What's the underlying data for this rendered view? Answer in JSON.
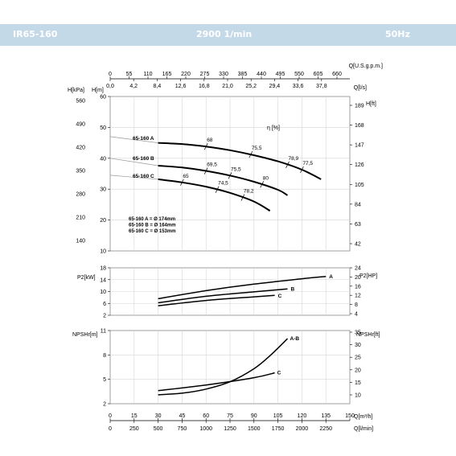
{
  "header": {
    "model": "IR65-160",
    "speed": "2900 1/min",
    "frequency": "50Hz",
    "color": "#c4d9e8"
  },
  "chart_data": [
    {
      "type": "line",
      "name": "head",
      "xlabel": "Q[m³/h]",
      "ylabel": "H[m]",
      "xlim": [
        0,
        150
      ],
      "ylim": [
        10,
        60
      ],
      "y_ticks": [
        10,
        20,
        30,
        40,
        50,
        60
      ],
      "y_ticks_kpa": [
        "140",
        "210",
        "280",
        "350",
        "420",
        "490",
        "560"
      ],
      "y_ticks_ft": [
        "42",
        "63",
        "84",
        "105",
        "126",
        "147",
        "168",
        "189"
      ],
      "top_axis_usgpm": {
        "label": "Q[U.S.g.p.m.]",
        "ticks": [
          "0",
          "55",
          "110",
          "165",
          "220",
          "275",
          "330",
          "385",
          "440",
          "495",
          "550",
          "605",
          "660"
        ]
      },
      "top_axis_ls": {
        "label": "Q[l/s]",
        "ticks": [
          "0,0",
          "4,2",
          "8,4",
          "12,6",
          "16,8",
          "21,0",
          "25,2",
          "29,4",
          "33,6",
          "37,8"
        ]
      },
      "left_outer_label": "H[kPa]",
      "right_label": "H[ft]",
      "eta_label": "η [%]",
      "series": [
        {
          "name": "65-160 A",
          "x": [
            0,
            30,
            45,
            60,
            75,
            90,
            105,
            120,
            132
          ],
          "y": [
            47,
            45,
            44.6,
            43.8,
            42.6,
            41,
            39,
            36.3,
            33.2
          ]
        },
        {
          "name": "65-160 B",
          "x": [
            0,
            30,
            45,
            60,
            75,
            90,
            105,
            111
          ],
          "y": [
            40,
            37.6,
            37,
            35.9,
            34.4,
            32.4,
            29.8,
            28
          ]
        },
        {
          "name": "65-160 C",
          "x": [
            0,
            30,
            45,
            60,
            75,
            90,
            100
          ],
          "y": [
            34.5,
            33.2,
            32.2,
            30.8,
            28.8,
            26,
            23
          ]
        }
      ],
      "efficiency_marks": [
        {
          "label": "68",
          "x": 60,
          "curve": 0
        },
        {
          "label": "75,5",
          "x": 88,
          "curve": 0
        },
        {
          "label": "78,9",
          "x": 111,
          "curve": 0
        },
        {
          "label": "77,5",
          "x": 120,
          "curve": 0
        },
        {
          "label": "69,5",
          "x": 60,
          "curve": 1
        },
        {
          "label": "75,5",
          "x": 75,
          "curve": 1
        },
        {
          "label": "80",
          "x": 95,
          "curve": 1
        },
        {
          "label": "65",
          "x": 45,
          "curve": 2
        },
        {
          "label": "74,5",
          "x": 67,
          "curve": 2
        },
        {
          "label": "78,2",
          "x": 83,
          "curve": 2
        }
      ],
      "impeller_notes": [
        "65-160 A = Ø 174mm",
        "65-160 B = Ø 164mm",
        "65-160 C = Ø 153mm"
      ]
    },
    {
      "type": "line",
      "name": "power",
      "ylabel": "P2[kW]",
      "right_label": "P2[HP]",
      "xlim": [
        0,
        150
      ],
      "ylim": [
        2,
        18
      ],
      "y_ticks": [
        2,
        6,
        10,
        14,
        18
      ],
      "y_ticks_hp": [
        "4",
        "8",
        "12",
        "16",
        "20",
        "24"
      ],
      "series": [
        {
          "name": "A",
          "x": [
            30,
            60,
            90,
            120,
            135
          ],
          "y": [
            7.6,
            10.3,
            12.5,
            14.3,
            15.1
          ]
        },
        {
          "name": "B",
          "x": [
            30,
            60,
            90,
            111
          ],
          "y": [
            6.2,
            8.4,
            9.9,
            10.9
          ]
        },
        {
          "name": "C",
          "x": [
            30,
            60,
            90,
            103
          ],
          "y": [
            5.2,
            7,
            8.2,
            8.7
          ]
        }
      ]
    },
    {
      "type": "line",
      "name": "npsh",
      "ylabel": "NPSHr[m]",
      "right_label": "NPSHr[ft]",
      "xlim": [
        0,
        150
      ],
      "ylim": [
        2,
        11
      ],
      "y_ticks": [
        2,
        5,
        8,
        11
      ],
      "y_ticks_ft": [
        "10",
        "15",
        "20",
        "25",
        "30",
        "35"
      ],
      "series": [
        {
          "name": "A-B",
          "x": [
            30,
            45,
            60,
            75,
            90,
            100,
            111
          ],
          "y": [
            3.1,
            3.3,
            3.8,
            4.7,
            6.3,
            7.9,
            10
          ]
        },
        {
          "name": "C",
          "x": [
            30,
            60,
            90,
            103
          ],
          "y": [
            3.6,
            4.3,
            5.2,
            5.8
          ]
        }
      ],
      "bottom_axis_m3h": {
        "label": "Q[m³/h]",
        "ticks": [
          "0",
          "15",
          "30",
          "45",
          "60",
          "75",
          "90",
          "105",
          "120",
          "135",
          "150"
        ]
      },
      "bottom_axis_lmin": {
        "label": "Q[l/min]",
        "ticks": [
          "0",
          "250",
          "500",
          "750",
          "1000",
          "1250",
          "1500",
          "1750",
          "2000",
          "2250"
        ]
      }
    }
  ]
}
